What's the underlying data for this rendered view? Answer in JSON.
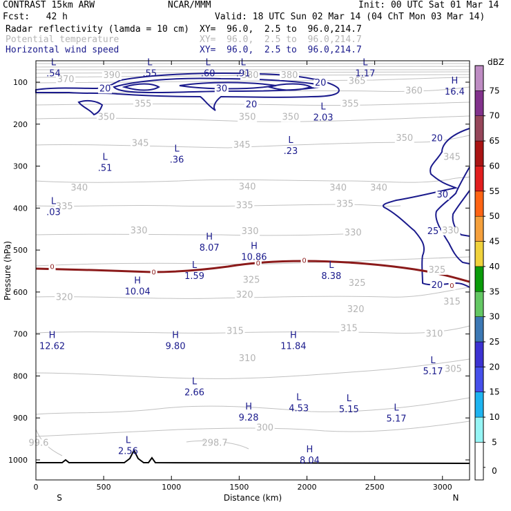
{
  "header": {
    "model": "CONTRAST 15km ARW",
    "org": "NCAR/MMM",
    "init": "Init: 00 UTC Sat 01 Mar 14",
    "fcst": "Fcst:   42 h",
    "valid": "Valid: 18 UTC Sun 02 Mar 14 (04 ChT Mon 03 Mar 14)",
    "fields": [
      {
        "name": "Radar reflectivity (lamda = 10 cm)",
        "xy": "XY=  96.0,  2.5 to  96.0,214.7",
        "color": "#000000"
      },
      {
        "name": "Potential temperature",
        "xy": "XY=  96.0,  2.5 to  96.0,214.7",
        "color": "#b4b4b4"
      },
      {
        "name": "Horizontal wind speed",
        "xy": "XY=  96.0,  2.5 to  96.0,214.7",
        "color": "#1a1a8c"
      }
    ]
  },
  "chart_data": {
    "type": "contour-cross-section",
    "xlabel": "Distance (km)",
    "ylabel": "Pressure (hPa)",
    "xlim": [
      0,
      3200
    ],
    "ylim": [
      1050,
      75
    ],
    "x_ticks": [
      0,
      500,
      1000,
      1500,
      2000,
      2500,
      3000
    ],
    "y_ticks": [
      100,
      200,
      300,
      400,
      500,
      600,
      700,
      800,
      900,
      1000
    ],
    "end_labels": {
      "left": "S",
      "right": "N"
    },
    "theta_labels": [
      {
        "text": "390",
        "x": 560,
        "p": 90
      },
      {
        "text": "380",
        "x": 1580,
        "p": 90
      },
      {
        "text": "380",
        "x": 1870,
        "p": 90
      },
      {
        "text": "370",
        "x": 220,
        "p": 100
      },
      {
        "text": "365",
        "x": 2370,
        "p": 104
      },
      {
        "text": "360",
        "x": 2790,
        "p": 127
      },
      {
        "text": "355",
        "x": 790,
        "p": 158
      },
      {
        "text": "355",
        "x": 2320,
        "p": 158
      },
      {
        "text": "350",
        "x": 520,
        "p": 190
      },
      {
        "text": "350",
        "x": 1560,
        "p": 190
      },
      {
        "text": "350",
        "x": 1880,
        "p": 190
      },
      {
        "text": "350",
        "x": 2720,
        "p": 240
      },
      {
        "text": "345",
        "x": 770,
        "p": 252
      },
      {
        "text": "345",
        "x": 1520,
        "p": 256
      },
      {
        "text": "340",
        "x": 320,
        "p": 358
      },
      {
        "text": "340",
        "x": 1560,
        "p": 356
      },
      {
        "text": "340",
        "x": 2230,
        "p": 358
      },
      {
        "text": "340",
        "x": 2530,
        "p": 358
      },
      {
        "text": "335",
        "x": 210,
        "p": 403
      },
      {
        "text": "335",
        "x": 1540,
        "p": 400
      },
      {
        "text": "335",
        "x": 2280,
        "p": 397
      },
      {
        "text": "330",
        "x": 760,
        "p": 460
      },
      {
        "text": "330",
        "x": 1580,
        "p": 462
      },
      {
        "text": "330",
        "x": 2340,
        "p": 465
      },
      {
        "text": "325",
        "x": 1590,
        "p": 578
      },
      {
        "text": "325",
        "x": 2370,
        "p": 585
      },
      {
        "text": "325",
        "x": 2960,
        "p": 554
      },
      {
        "text": "320",
        "x": 210,
        "p": 619
      },
      {
        "text": "320",
        "x": 1540,
        "p": 613
      },
      {
        "text": "320",
        "x": 2360,
        "p": 648
      },
      {
        "text": "315",
        "x": 1470,
        "p": 700
      },
      {
        "text": "315",
        "x": 2310,
        "p": 693
      },
      {
        "text": "315",
        "x": 3070,
        "p": 630
      },
      {
        "text": "310",
        "x": 1560,
        "p": 765
      },
      {
        "text": "310",
        "x": 2940,
        "p": 706
      },
      {
        "text": "305",
        "x": 3080,
        "p": 790
      },
      {
        "text": "300",
        "x": 1690,
        "p": 930
      },
      {
        "text": "298.7",
        "x": 1320,
        "p": 966
      },
      {
        "text": "99.6",
        "x": 20,
        "p": 966
      },
      {
        "text": "330",
        "x": 3060,
        "p": 460
      },
      {
        "text": "345",
        "x": 3070,
        "p": 285
      }
    ],
    "wind_labels": [
      {
        "text": "20",
        "x": 510,
        "p": 122
      },
      {
        "text": "30",
        "x": 1370,
        "p": 122
      },
      {
        "text": "20",
        "x": 2100,
        "p": 108
      },
      {
        "text": "20",
        "x": 1590,
        "p": 160
      },
      {
        "text": "20",
        "x": 2960,
        "p": 241
      },
      {
        "text": "30",
        "x": 3000,
        "p": 375
      },
      {
        "text": "25",
        "x": 2930,
        "p": 462
      },
      {
        "text": "20",
        "x": 2960,
        "p": 590
      },
      {
        "text": "0",
        "x": 120,
        "p": 545
      },
      {
        "text": "0",
        "x": 870,
        "p": 558
      },
      {
        "text": "0",
        "x": 1640,
        "p": 537
      },
      {
        "text": "0",
        "x": 1980,
        "p": 530
      },
      {
        "text": "0",
        "x": 3070,
        "p": 590
      }
    ],
    "hl_markers": [
      {
        "kind": "H",
        "value": "12.62",
        "x": 120,
        "p": 710
      },
      {
        "kind": "H",
        "value": "9.80",
        "x": 1030,
        "p": 710
      },
      {
        "kind": "H",
        "value": "11.84",
        "x": 1900,
        "p": 710
      },
      {
        "kind": "L",
        "value": "5.17",
        "x": 2930,
        "p": 770
      },
      {
        "kind": "L",
        "value": "2.66",
        "x": 1170,
        "p": 820
      },
      {
        "kind": "L",
        "value": "4.53",
        "x": 1940,
        "p": 858
      },
      {
        "kind": "L",
        "value": "5.15",
        "x": 2310,
        "p": 860
      },
      {
        "kind": "H",
        "value": "9.28",
        "x": 1570,
        "p": 880
      },
      {
        "kind": "L",
        "value": "5.17",
        "x": 2660,
        "p": 882
      },
      {
        "kind": "L",
        "value": "2.56",
        "x": 680,
        "p": 960
      },
      {
        "kind": "H",
        "value": "8.04",
        "x": 2020,
        "p": 982
      },
      {
        "kind": "L",
        "value": ".54",
        "x": 130,
        "p": 60
      },
      {
        "kind": "L",
        "value": ".55",
        "x": 840,
        "p": 60
      },
      {
        "kind": "L",
        "value": ".60",
        "x": 1270,
        "p": 60
      },
      {
        "kind": "L",
        "value": ".91",
        "x": 1530,
        "p": 60
      },
      {
        "kind": "L",
        "value": "1.17",
        "x": 2430,
        "p": 60
      },
      {
        "kind": "H",
        "value": "16.4",
        "x": 3090,
        "p": 103
      },
      {
        "kind": "L",
        "value": "2.03",
        "x": 2120,
        "p": 165
      },
      {
        "kind": "L",
        "value": ".23",
        "x": 1880,
        "p": 245
      },
      {
        "kind": "L",
        "value": ".36",
        "x": 1040,
        "p": 265
      },
      {
        "kind": "L",
        "value": ".51",
        "x": 510,
        "p": 285
      },
      {
        "kind": "L",
        "value": ".03",
        "x": 130,
        "p": 390
      },
      {
        "kind": "H",
        "value": "8.07",
        "x": 1280,
        "p": 475
      },
      {
        "kind": "H",
        "value": "10.86",
        "x": 1610,
        "p": 497
      },
      {
        "kind": "L",
        "value": "1.59",
        "x": 1170,
        "p": 543
      },
      {
        "kind": "L",
        "value": "8.38",
        "x": 2180,
        "p": 543
      },
      {
        "kind": "H",
        "value": "10.04",
        "x": 750,
        "p": 580
      }
    ],
    "colorbar": {
      "title": "dBZ",
      "levels": [
        0,
        5,
        10,
        15,
        20,
        25,
        30,
        35,
        40,
        45,
        50,
        55,
        60,
        65,
        70,
        75
      ],
      "colors": [
        "#ffffff",
        "#96f5f5",
        "#1eb4f0",
        "#4650eb",
        "#3c32d2",
        "#3c78b4",
        "#64c864",
        "#0a9b0a",
        "#f0d23c",
        "#f5a03c",
        "#ff6414",
        "#e11e1e",
        "#aa1414",
        "#96465a",
        "#82328c",
        "#be8cc3"
      ]
    }
  }
}
